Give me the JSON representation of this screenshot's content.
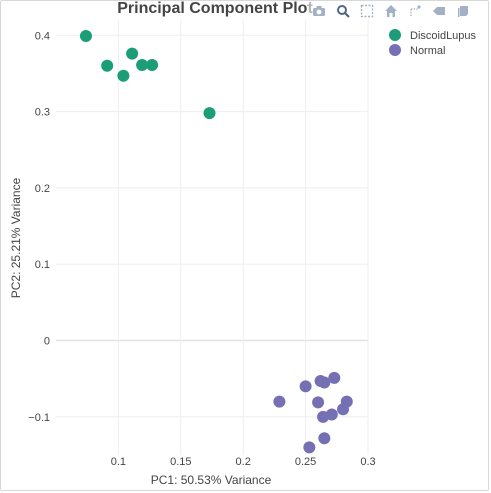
{
  "chart_data": {
    "type": "scatter",
    "title": "Principal Component Plot",
    "xlabel": "PC1: 50.53% Variance",
    "ylabel": "PC2: 25.21% Variance",
    "xlim": [
      0.05,
      0.3
    ],
    "ylim": [
      -0.15,
      0.42
    ],
    "xticks": [
      0.1,
      0.15,
      0.2,
      0.25,
      0.3
    ],
    "xtick_labels": [
      "0.1",
      "0.15",
      "0.2",
      "0.25",
      "0.3"
    ],
    "yticks": [
      -0.1,
      0,
      0.1,
      0.2,
      0.3,
      0.4
    ],
    "ytick_labels": [
      "−0.1",
      "0",
      "0.1",
      "0.2",
      "0.3",
      "0.4"
    ],
    "grid": true,
    "legend_position": "top-right",
    "series": [
      {
        "name": "DiscoidLupus",
        "color": "#1b9e77",
        "points": [
          {
            "x": 0.074,
            "y": 0.399
          },
          {
            "x": 0.091,
            "y": 0.36
          },
          {
            "x": 0.104,
            "y": 0.347
          },
          {
            "x": 0.111,
            "y": 0.376
          },
          {
            "x": 0.119,
            "y": 0.361
          },
          {
            "x": 0.127,
            "y": 0.361
          },
          {
            "x": 0.173,
            "y": 0.298
          }
        ]
      },
      {
        "name": "Normal",
        "color": "#7570b3",
        "points": [
          {
            "x": 0.229,
            "y": -0.08
          },
          {
            "x": 0.25,
            "y": -0.06
          },
          {
            "x": 0.253,
            "y": -0.14
          },
          {
            "x": 0.26,
            "y": -0.081
          },
          {
            "x": 0.262,
            "y": -0.053
          },
          {
            "x": 0.265,
            "y": -0.055
          },
          {
            "x": 0.264,
            "y": -0.1
          },
          {
            "x": 0.265,
            "y": -0.128
          },
          {
            "x": 0.271,
            "y": -0.097
          },
          {
            "x": 0.273,
            "y": -0.049
          },
          {
            "x": 0.28,
            "y": -0.09
          },
          {
            "x": 0.283,
            "y": -0.08
          }
        ]
      }
    ]
  },
  "modebar": {
    "icons": [
      "camera-icon",
      "zoom-icon",
      "box-select-icon",
      "home-icon",
      "spike-lines-icon",
      "hover-closest-icon",
      "hover-compare-icon"
    ]
  }
}
